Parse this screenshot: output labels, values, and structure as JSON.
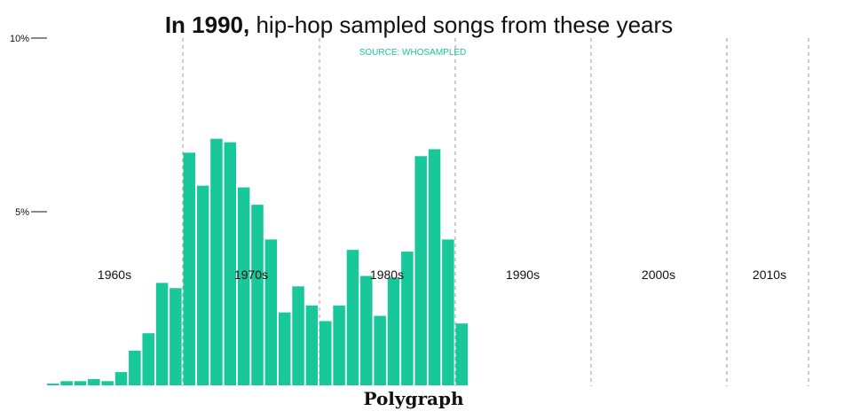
{
  "chart_data": {
    "type": "bar",
    "title_bold": "In 1990,",
    "title_rest": " hip-hop sampled songs from these years",
    "source": "SOURCE: WHOSAMPLED",
    "brand": "Polygraph",
    "y_ticks": [
      {
        "value": 10,
        "label": "10%"
      },
      {
        "value": 5,
        "label": "5%"
      }
    ],
    "ylim": [
      0,
      10
    ],
    "xlim": [
      1960,
      2020
    ],
    "decades": [
      {
        "year": 1960,
        "label": "1960s"
      },
      {
        "year": 1970,
        "label": "1970s"
      },
      {
        "year": 1980,
        "label": "1980s"
      },
      {
        "year": 1990,
        "label": "1990s"
      },
      {
        "year": 2000,
        "label": "2000s"
      },
      {
        "year": 2010,
        "label": "2010s"
      }
    ],
    "decade_dividers": [
      1970,
      1980,
      1990,
      2000,
      2010
    ],
    "years": [
      1960,
      1961,
      1962,
      1963,
      1964,
      1965,
      1966,
      1967,
      1968,
      1969,
      1970,
      1971,
      1972,
      1973,
      1974,
      1975,
      1976,
      1977,
      1978,
      1979,
      1980,
      1981,
      1982,
      1983,
      1984,
      1985,
      1986,
      1987,
      1988,
      1989,
      1990
    ],
    "values": [
      0.05,
      0.12,
      0.12,
      0.18,
      0.12,
      0.38,
      1.0,
      1.5,
      2.95,
      2.8,
      6.7,
      5.75,
      7.1,
      7.0,
      5.7,
      5.2,
      4.2,
      2.1,
      2.85,
      2.3,
      1.85,
      2.3,
      3.9,
      3.15,
      2.0,
      3.1,
      3.85,
      6.6,
      6.8,
      4.2,
      1.78
    ],
    "bar_color": "#18c79a",
    "source_color": "#18c79a",
    "grid": false
  }
}
